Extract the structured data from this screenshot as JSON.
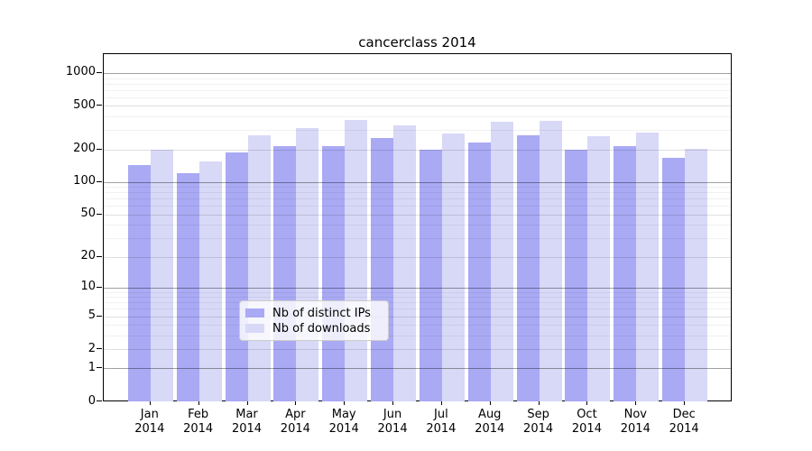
{
  "title": "cancerclass 2014",
  "chart_data": {
    "type": "bar",
    "title": "cancerclass 2014",
    "year": "2014",
    "months": [
      "Jan",
      "Feb",
      "Mar",
      "Apr",
      "May",
      "Jun",
      "Jul",
      "Aug",
      "Sep",
      "Oct",
      "Nov",
      "Dec"
    ],
    "categories": [
      "Jan 2014",
      "Feb 2014",
      "Mar 2014",
      "Apr 2014",
      "May 2014",
      "Jun 2014",
      "Jul 2014",
      "Aug 2014",
      "Sep 2014",
      "Oct 2014",
      "Nov 2014",
      "Dec 2014"
    ],
    "series": [
      {
        "name": "Nb of distinct IPs",
        "color": "#a9a9f4",
        "values": [
          142,
          120,
          187,
          213,
          216,
          253,
          200,
          229,
          270,
          199,
          213,
          166
        ]
      },
      {
        "name": "Nb of downloads",
        "color": "#d8d8f7",
        "values": [
          198,
          156,
          270,
          312,
          375,
          330,
          282,
          357,
          366,
          266,
          286,
          203
        ]
      }
    ],
    "yscale": "log1p",
    "ylim": [
      0,
      1465
    ],
    "y_tick_labels": [
      0,
      1,
      2,
      5,
      10,
      20,
      50,
      100,
      200,
      500,
      1000
    ],
    "y_decade_gridlines": [
      1,
      10,
      100,
      1000
    ],
    "y_labeled_gridlines": [
      2,
      5,
      20,
      50,
      200,
      500
    ],
    "y_minor_gridlines": [
      3,
      4,
      6,
      7,
      8,
      9,
      30,
      40,
      60,
      70,
      80,
      90,
      300,
      400,
      600,
      700,
      800,
      900
    ],
    "grid": true,
    "legend_position": "lower center",
    "xlabel": "",
    "ylabel": ""
  },
  "colors": {
    "distinct_ips": "#a9a9f4",
    "downloads": "#d8d8f7",
    "axis": "#000000",
    "background": "#ffffff"
  }
}
